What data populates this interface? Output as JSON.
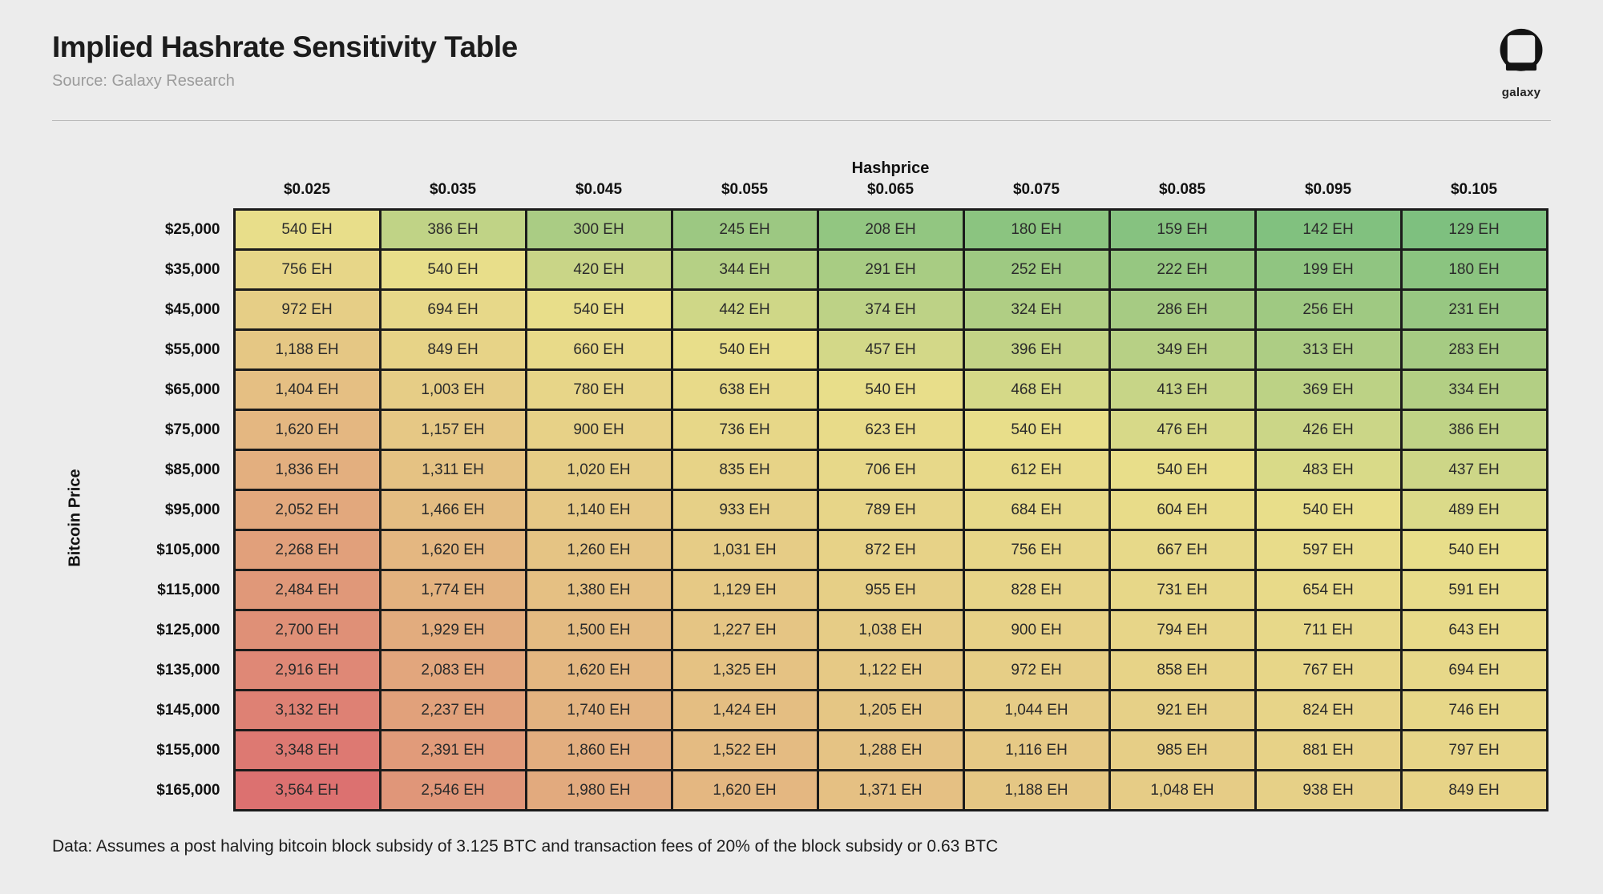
{
  "header": {
    "title": "Implied Hashrate Sensitivity Table",
    "source": "Source: Galaxy Research",
    "logo_text": "galaxy"
  },
  "footer": {
    "note": "Data: Assumes a post halving bitcoin block subsidy of 3.125 BTC and transaction fees of 20% of the block subsidy or 0.63 BTC"
  },
  "chart_data": {
    "type": "heatmap",
    "title": "Implied Hashrate Sensitivity Table",
    "x_axis_label": "Hashprice",
    "y_axis_label": "Bitcoin Price",
    "columns": [
      "$0.025",
      "$0.035",
      "$0.045",
      "$0.055",
      "$0.065",
      "$0.075",
      "$0.085",
      "$0.095",
      "$0.105"
    ],
    "rows": [
      "$25,000",
      "$35,000",
      "$45,000",
      "$55,000",
      "$65,000",
      "$75,000",
      "$85,000",
      "$95,000",
      "$105,000",
      "$115,000",
      "$125,000",
      "$135,000",
      "$145,000",
      "$155,000",
      "$165,000"
    ],
    "value_suffix": " EH",
    "values": [
      [
        540,
        386,
        300,
        245,
        208,
        180,
        159,
        142,
        129
      ],
      [
        756,
        540,
        420,
        344,
        291,
        252,
        222,
        199,
        180
      ],
      [
        972,
        694,
        540,
        442,
        374,
        324,
        286,
        256,
        231
      ],
      [
        1188,
        849,
        660,
        540,
        457,
        396,
        349,
        313,
        283
      ],
      [
        1404,
        1003,
        780,
        638,
        540,
        468,
        413,
        369,
        334
      ],
      [
        1620,
        1157,
        900,
        736,
        623,
        540,
        476,
        426,
        386
      ],
      [
        1836,
        1311,
        1020,
        835,
        706,
        612,
        540,
        483,
        437
      ],
      [
        2052,
        1466,
        1140,
        933,
        789,
        684,
        604,
        540,
        489
      ],
      [
        2268,
        1620,
        1260,
        1031,
        872,
        756,
        667,
        597,
        540
      ],
      [
        2484,
        1774,
        1380,
        1129,
        955,
        828,
        731,
        654,
        591
      ],
      [
        2700,
        1929,
        1500,
        1227,
        1038,
        900,
        794,
        711,
        643
      ],
      [
        2916,
        2083,
        1620,
        1325,
        1122,
        972,
        858,
        767,
        694
      ],
      [
        3132,
        2237,
        1740,
        1424,
        1205,
        1044,
        921,
        824,
        746
      ],
      [
        3348,
        2391,
        1860,
        1522,
        1288,
        1116,
        985,
        881,
        797
      ],
      [
        3564,
        2546,
        1980,
        1620,
        1371,
        1188,
        1048,
        938,
        849
      ]
    ],
    "color_scale": {
      "min_value": 129,
      "mid_value": 540,
      "max_value": 3564,
      "min_color": "#7ec07f",
      "mid_color": "#e8de8a",
      "max_color": "#dc7170"
    },
    "grid_color": "#1b1b1b",
    "background_color": "#ececec"
  }
}
